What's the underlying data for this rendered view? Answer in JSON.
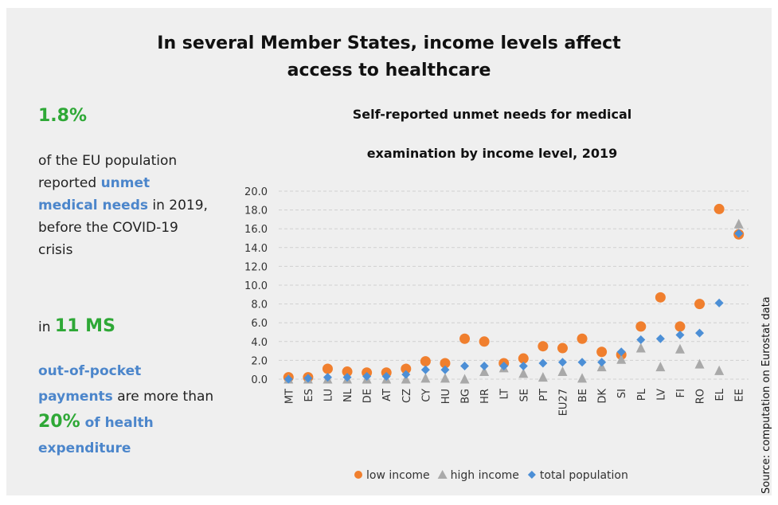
{
  "title_lines": [
    "In several Member States, income levels affect",
    "access to healthcare"
  ],
  "stat1": {
    "value": "1.8%",
    "text_a": "of the EU population reported ",
    "highlight": "unmet medical needs",
    "text_b": " in 2019, before the COVID-19 crisis"
  },
  "stat2": {
    "prefix": "in ",
    "value": "11 MS",
    "highlight": "out-of-pocket payments",
    "text_a": " are more than ",
    "pct": "20%",
    "tail": " of health expenditure"
  },
  "source_note": "Source: computation on Eurostat data",
  "colors": {
    "low": "#f07f2e",
    "high": "#a9a9a9",
    "total": "#4c8fd6",
    "green": "#2ea836",
    "blue": "#4c86cb"
  },
  "chart_data": {
    "type": "scatter",
    "title_lines": [
      "Self-reported unmet needs for medical",
      "examination by income level, 2019"
    ],
    "categories": [
      "MT",
      "ES",
      "LU",
      "NL",
      "DE",
      "AT",
      "CZ",
      "CY",
      "HU",
      "BG",
      "HR",
      "LT",
      "SE",
      "PT",
      "EU27",
      "BE",
      "DK",
      "SI",
      "PL",
      "LV",
      "FI",
      "RO",
      "EL",
      "EE"
    ],
    "ylim": [
      0,
      20
    ],
    "yticks": [
      "0.0",
      "2.0",
      "4.0",
      "6.0",
      "8.0",
      "10.0",
      "12.0",
      "14.0",
      "16.0",
      "18.0",
      "20.0"
    ],
    "grid": true,
    "legend_position": "bottom",
    "series": [
      {
        "name": "low income",
        "marker": "circle",
        "values": [
          0.2,
          0.2,
          1.1,
          0.8,
          0.7,
          0.7,
          1.1,
          1.9,
          1.7,
          4.3,
          4.0,
          1.7,
          2.2,
          3.5,
          3.3,
          4.3,
          2.9,
          2.6,
          5.6,
          8.7,
          5.6,
          8.0,
          18.1,
          15.4
        ]
      },
      {
        "name": "high income",
        "marker": "triangle",
        "values": [
          0.0,
          0.0,
          0.0,
          0.0,
          0.0,
          0.0,
          0.0,
          0.1,
          0.1,
          0.0,
          0.8,
          1.2,
          0.6,
          0.2,
          0.8,
          0.1,
          1.3,
          2.1,
          3.3,
          1.3,
          3.2,
          1.6,
          0.9,
          16.5
        ]
      },
      {
        "name": "total population",
        "marker": "diamond",
        "values": [
          0.0,
          0.1,
          0.2,
          0.2,
          0.3,
          0.3,
          0.5,
          1.0,
          1.0,
          1.4,
          1.4,
          1.4,
          1.4,
          1.7,
          1.8,
          1.8,
          1.8,
          2.9,
          4.2,
          4.3,
          4.7,
          4.9,
          8.1,
          15.5
        ]
      }
    ]
  }
}
